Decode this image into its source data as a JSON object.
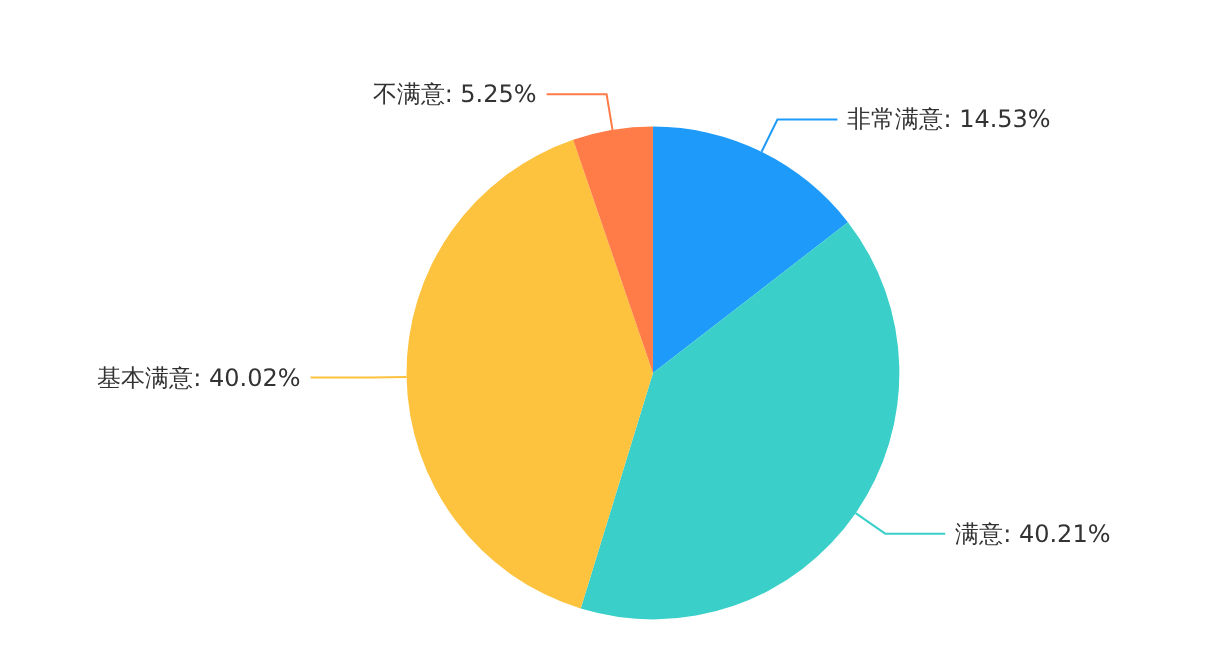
{
  "chart_data": {
    "type": "pie",
    "categories": [
      "非常满意",
      "满意",
      "基本满意",
      "不满意"
    ],
    "values": [
      14.53,
      40.21,
      40.02,
      5.25
    ],
    "value_labels": [
      "14.53%",
      "40.21%",
      "40.02%",
      "5.25%"
    ],
    "colors": [
      "#1e9bfa",
      "#3ad0c9",
      "#fdc23e",
      "#ff7c48"
    ],
    "legend": false
  }
}
